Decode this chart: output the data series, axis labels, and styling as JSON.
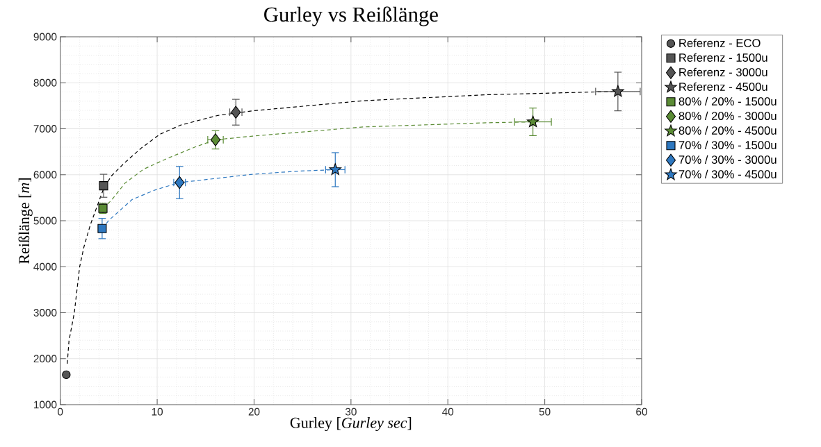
{
  "chart_data": {
    "type": "scatter",
    "title": "Gurley vs Reißlänge",
    "xlabel": "Gurley [*Gurley sec*]",
    "ylabel": "Reißlänge [*m*]",
    "xlim": [
      0,
      60
    ],
    "ylim": [
      1000,
      9000
    ],
    "xticks": [
      0,
      10,
      20,
      30,
      40,
      50,
      60
    ],
    "yticks": [
      1000,
      2000,
      3000,
      4000,
      5000,
      6000,
      7000,
      8000,
      9000
    ],
    "grid": true,
    "legend": "right",
    "series": [
      {
        "type": "line",
        "color": "#000000",
        "line_style": "dashed",
        "marker": "none",
        "x": [
          0.72,
          0.9,
          1.45,
          2.0,
          2.44,
          3.1,
          4.47,
          5.26,
          6.69,
          8.36,
          10.28,
          12.43,
          16.26,
          19.84,
          31.3,
          44.0,
          55.2,
          57.55
        ],
        "values": [
          1890,
          2390,
          3000,
          4000,
          4430,
          4910,
          5700,
          5970,
          6270,
          6580,
          6880,
          7080,
          7290,
          7390,
          7610,
          7740,
          7800,
          7810
        ]
      },
      {
        "type": "line",
        "color": "#5b8c35",
        "line_style": "dashed",
        "marker": "none",
        "x": [
          4.4,
          5.26,
          6.69,
          8.6,
          10.99,
          13.87,
          16.02,
          19.84,
          31.32,
          44.0,
          48.78
        ],
        "values": [
          5270,
          5440,
          5820,
          6120,
          6350,
          6600,
          6760,
          6840,
          7040,
          7130,
          7150
        ]
      },
      {
        "type": "line",
        "color": "#2e78c0",
        "line_style": "dashed",
        "marker": "none",
        "x": [
          4.32,
          5.02,
          7.41,
          9.8,
          12.31,
          19.84,
          24.63,
          28.38
        ],
        "values": [
          4830,
          5010,
          5460,
          5670,
          5830,
          6010,
          6080,
          6110
        ]
      },
      {
        "name": "Referenz - ECO",
        "color": "#555555",
        "marker": "circle",
        "x": [
          0.62
        ],
        "values": [
          1650
        ],
        "errors": [
          30
        ]
      },
      {
        "name": "Referenz - 1500u",
        "color": "#555555",
        "marker": "square",
        "x": [
          4.47
        ],
        "values": [
          5760
        ],
        "errors": [
          250
        ]
      },
      {
        "name": "Referenz - 3000u",
        "color": "#555555",
        "marker": "diamond",
        "x": [
          18.12
        ],
        "values": [
          7360
        ],
        "errors": [
          280
        ],
        "xerrors": [
          0.63
        ]
      },
      {
        "name": "Referenz - 4500u",
        "color": "#555555",
        "marker": "star",
        "x": [
          57.55
        ],
        "values": [
          7810
        ],
        "errors": [
          420
        ],
        "xerrors": [
          2.3
        ]
      },
      {
        "name": "80% / 20% - 1500u",
        "color": "#5b8c35",
        "marker": "square",
        "x": [
          4.4
        ],
        "values": [
          5270
        ],
        "errors": [
          110
        ]
      },
      {
        "name": "80% / 20% - 3000u",
        "color": "#5b8c35",
        "marker": "diamond",
        "x": [
          16.02
        ],
        "values": [
          6760
        ],
        "errors": [
          200
        ],
        "xerrors": [
          0.8
        ]
      },
      {
        "name": "80% / 20% - 4500u",
        "color": "#5b8c35",
        "marker": "star",
        "x": [
          48.78
        ],
        "values": [
          7150
        ],
        "errors": [
          300
        ],
        "xerrors": [
          1.9
        ]
      },
      {
        "name": "70% / 30% - 1500u",
        "color": "#2e78c0",
        "marker": "square",
        "x": [
          4.32
        ],
        "values": [
          4830
        ],
        "errors": [
          220
        ]
      },
      {
        "name": "70% / 30% - 3000u",
        "color": "#2e78c0",
        "marker": "diamond",
        "x": [
          12.31
        ],
        "values": [
          5830
        ],
        "errors": [
          350
        ],
        "xerrors": [
          0.6
        ]
      },
      {
        "name": "70% / 30% - 4500u",
        "color": "#2e78c0",
        "marker": "star",
        "x": [
          28.38
        ],
        "values": [
          6110
        ],
        "errors": [
          370
        ],
        "xerrors": [
          1.0
        ]
      }
    ]
  }
}
